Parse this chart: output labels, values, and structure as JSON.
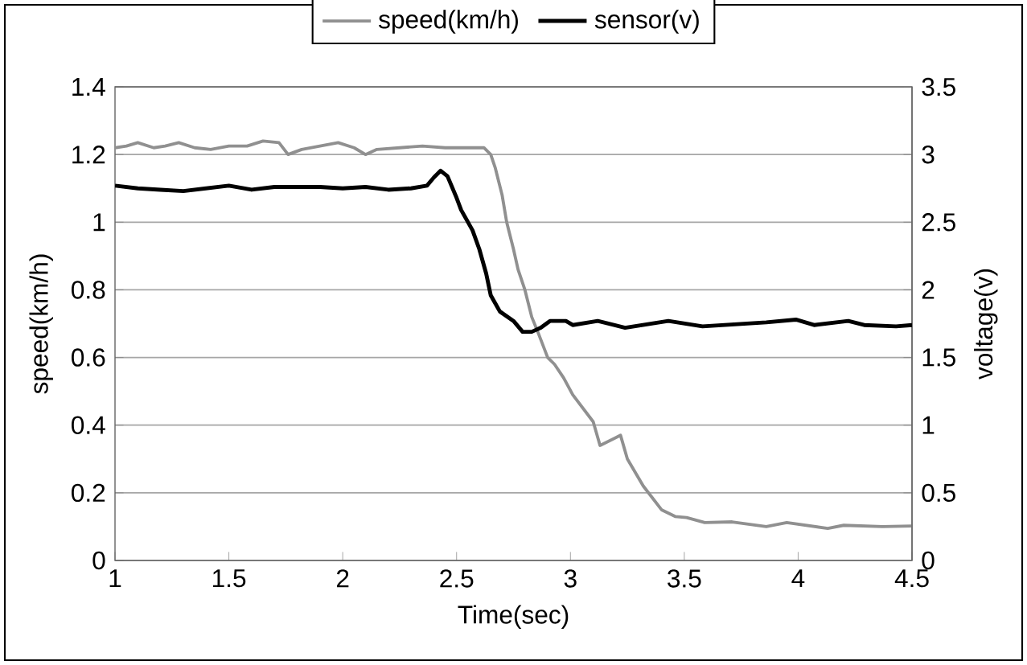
{
  "chart_data": {
    "type": "line",
    "xlabel": "Time(sec)",
    "ylabel": "speed(km/h)",
    "y2label": "voltage(v)",
    "xlim": [
      1,
      4.5
    ],
    "xticks": [
      1,
      1.5,
      2,
      2.5,
      3,
      3.5,
      4,
      4.5
    ],
    "ylim": [
      0,
      1.4
    ],
    "yticks": [
      0,
      0.2,
      0.4,
      0.6,
      0.8,
      1,
      1.2,
      1.4
    ],
    "y2lim": [
      0,
      3.5
    ],
    "y2ticks": [
      0,
      0.5,
      1,
      1.5,
      2,
      2.5,
      3,
      3.5
    ],
    "grid": "y",
    "legend": "top",
    "series": [
      {
        "name": "speed(km/h)",
        "color": "#909090",
        "x": [
          1.0,
          1.05,
          1.1,
          1.17,
          1.22,
          1.28,
          1.35,
          1.42,
          1.5,
          1.58,
          1.65,
          1.72,
          1.76,
          1.82,
          1.9,
          1.98,
          2.05,
          2.1,
          2.15,
          2.25,
          2.35,
          2.45,
          2.55,
          2.62,
          2.65,
          2.67,
          2.7,
          2.72,
          2.75,
          2.77,
          2.8,
          2.83,
          2.86,
          2.9,
          2.93,
          2.97,
          3.01,
          3.1,
          3.13,
          3.22,
          3.25,
          3.32,
          3.4,
          3.46,
          3.51,
          3.59,
          3.71,
          3.86,
          3.95,
          4.13,
          4.2,
          4.37,
          4.5
        ],
        "values": [
          1.22,
          1.225,
          1.235,
          1.22,
          1.225,
          1.235,
          1.22,
          1.215,
          1.225,
          1.225,
          1.24,
          1.235,
          1.2,
          1.215,
          1.225,
          1.235,
          1.22,
          1.2,
          1.215,
          1.22,
          1.225,
          1.22,
          1.22,
          1.22,
          1.2,
          1.16,
          1.08,
          1.0,
          0.92,
          0.86,
          0.8,
          0.72,
          0.67,
          0.6,
          0.58,
          0.54,
          0.49,
          0.41,
          0.34,
          0.37,
          0.3,
          0.22,
          0.15,
          0.13,
          0.127,
          0.112,
          0.114,
          0.1,
          0.112,
          0.095,
          0.104,
          0.1,
          0.102
        ]
      },
      {
        "name": "sensor(v)",
        "color": "#000000",
        "axis": "y2",
        "x": [
          1.0,
          1.1,
          1.2,
          1.3,
          1.4,
          1.5,
          1.6,
          1.7,
          1.8,
          1.9,
          2.0,
          2.1,
          2.2,
          2.3,
          2.37,
          2.4,
          2.43,
          2.46,
          2.5,
          2.52,
          2.57,
          2.6,
          2.63,
          2.65,
          2.69,
          2.75,
          2.79,
          2.83,
          2.87,
          2.91,
          2.98,
          3.01,
          3.12,
          3.24,
          3.43,
          3.58,
          3.86,
          3.99,
          4.07,
          4.22,
          4.29,
          4.43,
          4.5
        ],
        "values": [
          2.77,
          2.75,
          2.74,
          2.73,
          2.75,
          2.77,
          2.74,
          2.76,
          2.76,
          2.76,
          2.75,
          2.76,
          2.74,
          2.75,
          2.77,
          2.83,
          2.88,
          2.84,
          2.68,
          2.59,
          2.44,
          2.3,
          2.12,
          1.96,
          1.84,
          1.77,
          1.69,
          1.69,
          1.72,
          1.77,
          1.77,
          1.74,
          1.77,
          1.72,
          1.77,
          1.73,
          1.76,
          1.78,
          1.74,
          1.77,
          1.74,
          1.73,
          1.74
        ]
      }
    ]
  }
}
